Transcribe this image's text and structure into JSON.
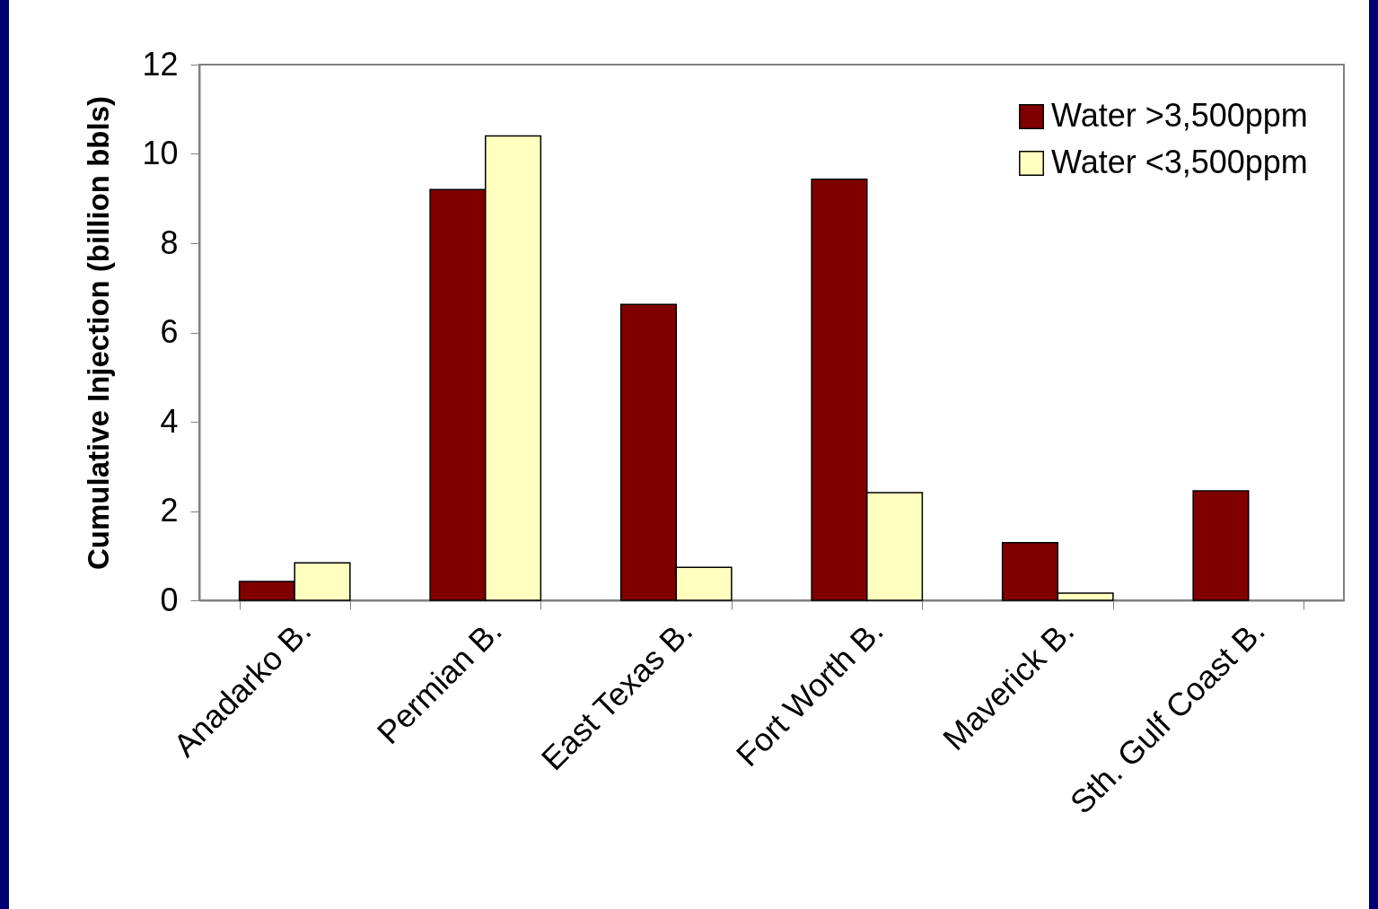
{
  "chart_data": {
    "type": "bar",
    "ylabel": "Cumulative Injection (billion bbls)",
    "categories": [
      "Anadarko B.",
      "Permian B.",
      "East Texas B.",
      "Fort Worth B.",
      "Maverick B.",
      "Sth. Gulf Coast B."
    ],
    "series": [
      {
        "name": "Water >3,500ppm",
        "color": "#800000",
        "values": [
          0.42,
          9.2,
          6.63,
          9.43,
          1.29,
          2.45
        ]
      },
      {
        "name": "Water <3,500ppm",
        "color": "#ffffc0",
        "values": [
          0.84,
          10.4,
          0.74,
          2.41,
          0.16,
          null
        ]
      }
    ],
    "ylim": [
      0,
      12
    ],
    "yticks": [
      0,
      2,
      4,
      6,
      8,
      10,
      12
    ],
    "grid": false,
    "legend": "top right"
  }
}
